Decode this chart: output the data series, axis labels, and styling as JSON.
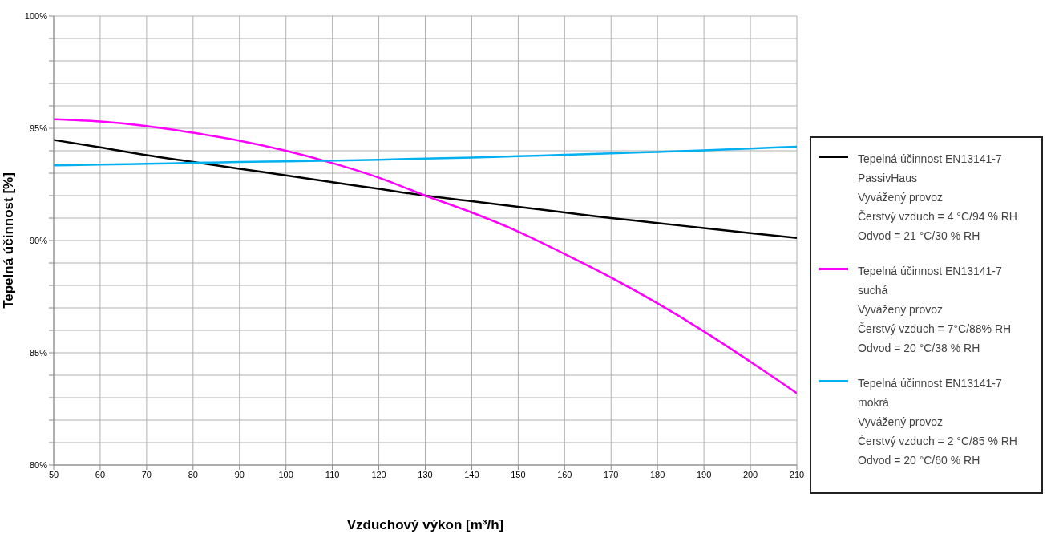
{
  "chart_data": {
    "type": "line",
    "xlabel": "Vzduchový výkon [m³/h]",
    "ylabel": "Tepelná účinnost [%]",
    "x": [
      50,
      60,
      70,
      80,
      90,
      100,
      110,
      120,
      130,
      140,
      150,
      160,
      170,
      180,
      190,
      200,
      210
    ],
    "series": [
      {
        "name": "Tepelná účinnost EN13141-7\nPassivHaus\nVyvážený provoz\nČerstvý vzduch = 4 °C/94 % RH\nOdvod = 21 °C/30 % RH",
        "color": "#000000",
        "values": [
          94.48,
          94.15,
          93.8,
          93.5,
          93.2,
          92.9,
          92.6,
          92.3,
          92.0,
          91.75,
          91.5,
          91.25,
          91.0,
          90.78,
          90.55,
          90.33,
          90.12
        ]
      },
      {
        "name": "Tepelná účinnost EN13141-7\nsuchá\nVyvážený provoz\nČerstvý vzduch = 7°C/88% RH\nOdvod = 20 °C/38 % RH",
        "color": "#ff00ff",
        "values": [
          95.4,
          95.3,
          95.1,
          94.8,
          94.45,
          94.0,
          93.45,
          92.8,
          92.0,
          91.25,
          90.4,
          89.4,
          88.35,
          87.2,
          85.95,
          84.6,
          83.2
        ]
      },
      {
        "name": "Tepelná účinnost EN13141-7\nmokrá\nVyvážený provoz\nČerstvý vzduch = 2 °C/85 % RH\nOdvod = 20 °C/60 % RH",
        "color": "#00b0f0",
        "values": [
          93.35,
          93.38,
          93.42,
          93.46,
          93.5,
          93.53,
          93.56,
          93.6,
          93.65,
          93.7,
          93.76,
          93.82,
          93.88,
          93.95,
          94.02,
          94.1,
          94.18
        ]
      }
    ],
    "xlim": [
      50,
      210
    ],
    "xticks": [
      50,
      60,
      70,
      80,
      90,
      100,
      110,
      120,
      130,
      140,
      150,
      160,
      170,
      180,
      190,
      200,
      210
    ],
    "ylim": [
      80,
      100
    ],
    "yticks": [
      {
        "value": 80,
        "label": "80%"
      },
      {
        "value": 81,
        "label": null
      },
      {
        "value": 82,
        "label": null
      },
      {
        "value": 83,
        "label": null
      },
      {
        "value": 84,
        "label": null
      },
      {
        "value": 85,
        "label": "85%"
      },
      {
        "value": 86,
        "label": null
      },
      {
        "value": 87,
        "label": null
      },
      {
        "value": 88,
        "label": null
      },
      {
        "value": 89,
        "label": null
      },
      {
        "value": 90,
        "label": "90%"
      },
      {
        "value": 91,
        "label": null
      },
      {
        "value": 92,
        "label": null
      },
      {
        "value": 93,
        "label": null
      },
      {
        "value": 94,
        "label": null
      },
      {
        "value": 95,
        "label": "95%"
      },
      {
        "value": 96,
        "label": null
      },
      {
        "value": 97,
        "label": null
      },
      {
        "value": 98,
        "label": null
      },
      {
        "value": 99,
        "label": null
      },
      {
        "value": 100,
        "label": "100%"
      }
    ],
    "grid": true,
    "legend": "right",
    "marker": "none",
    "line_style": "solid"
  }
}
